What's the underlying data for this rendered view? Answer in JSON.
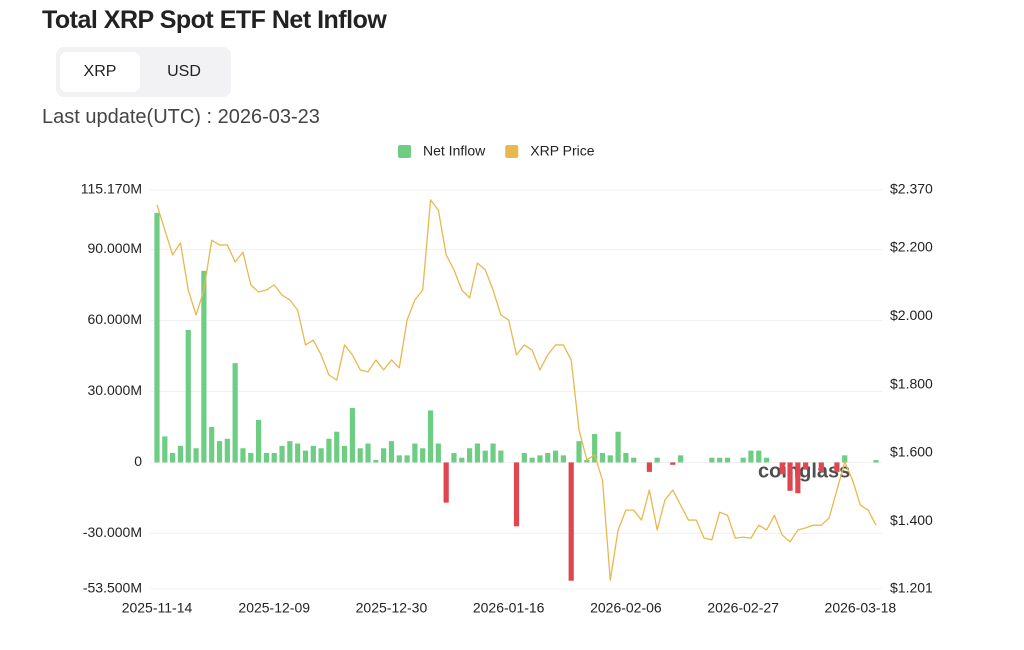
{
  "unit_toggle": [
    "XRP",
    "USD"
  ],
  "chart_data": {
    "type": "bar",
    "title": "Total XRP Spot ETF Net Inflow",
    "subtitle": "Last update(UTC) : 2026-03-23",
    "watermark": "coinglass",
    "categories": [
      "2025-11-14",
      null,
      null,
      null,
      null,
      null,
      null,
      null,
      null,
      null,
      null,
      null,
      null,
      null,
      null,
      "2025-12-09",
      null,
      null,
      null,
      null,
      null,
      null,
      null,
      null,
      null,
      null,
      null,
      null,
      null,
      null,
      "2025-12-30",
      null,
      null,
      null,
      null,
      null,
      null,
      null,
      null,
      null,
      null,
      null,
      null,
      null,
      null,
      "2026-01-16",
      null,
      null,
      null,
      null,
      null,
      null,
      null,
      null,
      null,
      null,
      null,
      null,
      null,
      null,
      "2026-02-06",
      null,
      null,
      null,
      null,
      null,
      null,
      null,
      null,
      null,
      null,
      null,
      null,
      null,
      null,
      "2026-02-27",
      null,
      null,
      null,
      null,
      null,
      null,
      null,
      null,
      null,
      null,
      null,
      null,
      null,
      null,
      "2026-03-18",
      null,
      null
    ],
    "series": [
      {
        "name": "Net Inflow",
        "type": "bar",
        "color": "#6dcd82",
        "negative_color": "#e0464f",
        "values": [
          105.5,
          11,
          4,
          7,
          56,
          6,
          81,
          15,
          9,
          10,
          42,
          6,
          4,
          18,
          4,
          4,
          7,
          9,
          8,
          5,
          7,
          6,
          10,
          13,
          7,
          23,
          6,
          8,
          1,
          6,
          9,
          3,
          3,
          8,
          6,
          22,
          8,
          -17,
          4,
          2,
          6,
          8,
          5,
          8,
          5,
          0,
          -27,
          4,
          2,
          3,
          4,
          5,
          3,
          -50,
          9,
          1,
          12,
          4,
          3,
          13,
          4,
          2,
          0,
          -4,
          2,
          0,
          -1,
          3,
          0,
          0,
          0,
          2,
          2,
          2,
          0,
          2,
          5,
          5,
          2,
          0,
          -5,
          -12,
          -13,
          -3,
          0,
          -4,
          0,
          -4,
          3,
          0,
          0,
          0,
          1
        ]
      },
      {
        "name": "XRP Price",
        "type": "line",
        "axis": "y2",
        "color": "#e8b84f",
        "values": [
          2.326,
          2.253,
          2.18,
          2.215,
          2.077,
          2.004,
          2.077,
          2.223,
          2.209,
          2.209,
          2.159,
          2.188,
          2.092,
          2.071,
          2.077,
          2.092,
          2.062,
          2.048,
          2.018,
          1.916,
          1.93,
          1.887,
          1.828,
          1.813,
          1.916,
          1.887,
          1.843,
          1.837,
          1.872,
          1.843,
          1.872,
          1.849,
          1.989,
          2.048,
          2.077,
          2.341,
          2.311,
          2.18,
          2.136,
          2.077,
          2.054,
          2.156,
          2.136,
          2.077,
          2.004,
          1.989,
          1.887,
          1.916,
          1.901,
          1.843,
          1.887,
          1.916,
          1.916,
          1.872,
          1.667,
          1.579,
          1.594,
          1.52,
          1.227,
          1.374,
          1.432,
          1.432,
          1.403,
          1.491,
          1.374,
          1.462,
          1.491,
          1.447,
          1.403,
          1.403,
          1.35,
          1.345,
          1.426,
          1.417,
          1.35,
          1.353,
          1.35,
          1.388,
          1.374,
          1.417,
          1.359,
          1.339,
          1.374,
          1.38,
          1.388,
          1.388,
          1.409,
          1.491,
          1.573,
          1.52,
          1.447,
          1.432,
          1.388
        ]
      }
    ],
    "ylim": [
      -53.5,
      115.17
    ],
    "yticks": [
      {
        "value": 115.17,
        "label": "115.170M"
      },
      {
        "value": 90,
        "label": "90.000M"
      },
      {
        "value": 60,
        "label": "60.000M"
      },
      {
        "value": 30,
        "label": "30.000M"
      },
      0,
      {
        "value": -30,
        "label": "-30.000M"
      },
      {
        "value": -53.5,
        "label": "-53.500M"
      }
    ],
    "y2lim": [
      1.201,
      2.37
    ],
    "y2ticks": [
      {
        "value": 2.37,
        "label": "$2.370"
      },
      {
        "value": 2.2,
        "label": "$2.200"
      },
      {
        "value": 2.0,
        "label": "$2.000"
      },
      {
        "value": 1.8,
        "label": "$1.800"
      },
      {
        "value": 1.6,
        "label": "$1.600"
      },
      {
        "value": 1.4,
        "label": "$1.400"
      },
      {
        "value": 1.201,
        "label": "$1.201"
      }
    ],
    "grid": true,
    "legend": "top"
  }
}
